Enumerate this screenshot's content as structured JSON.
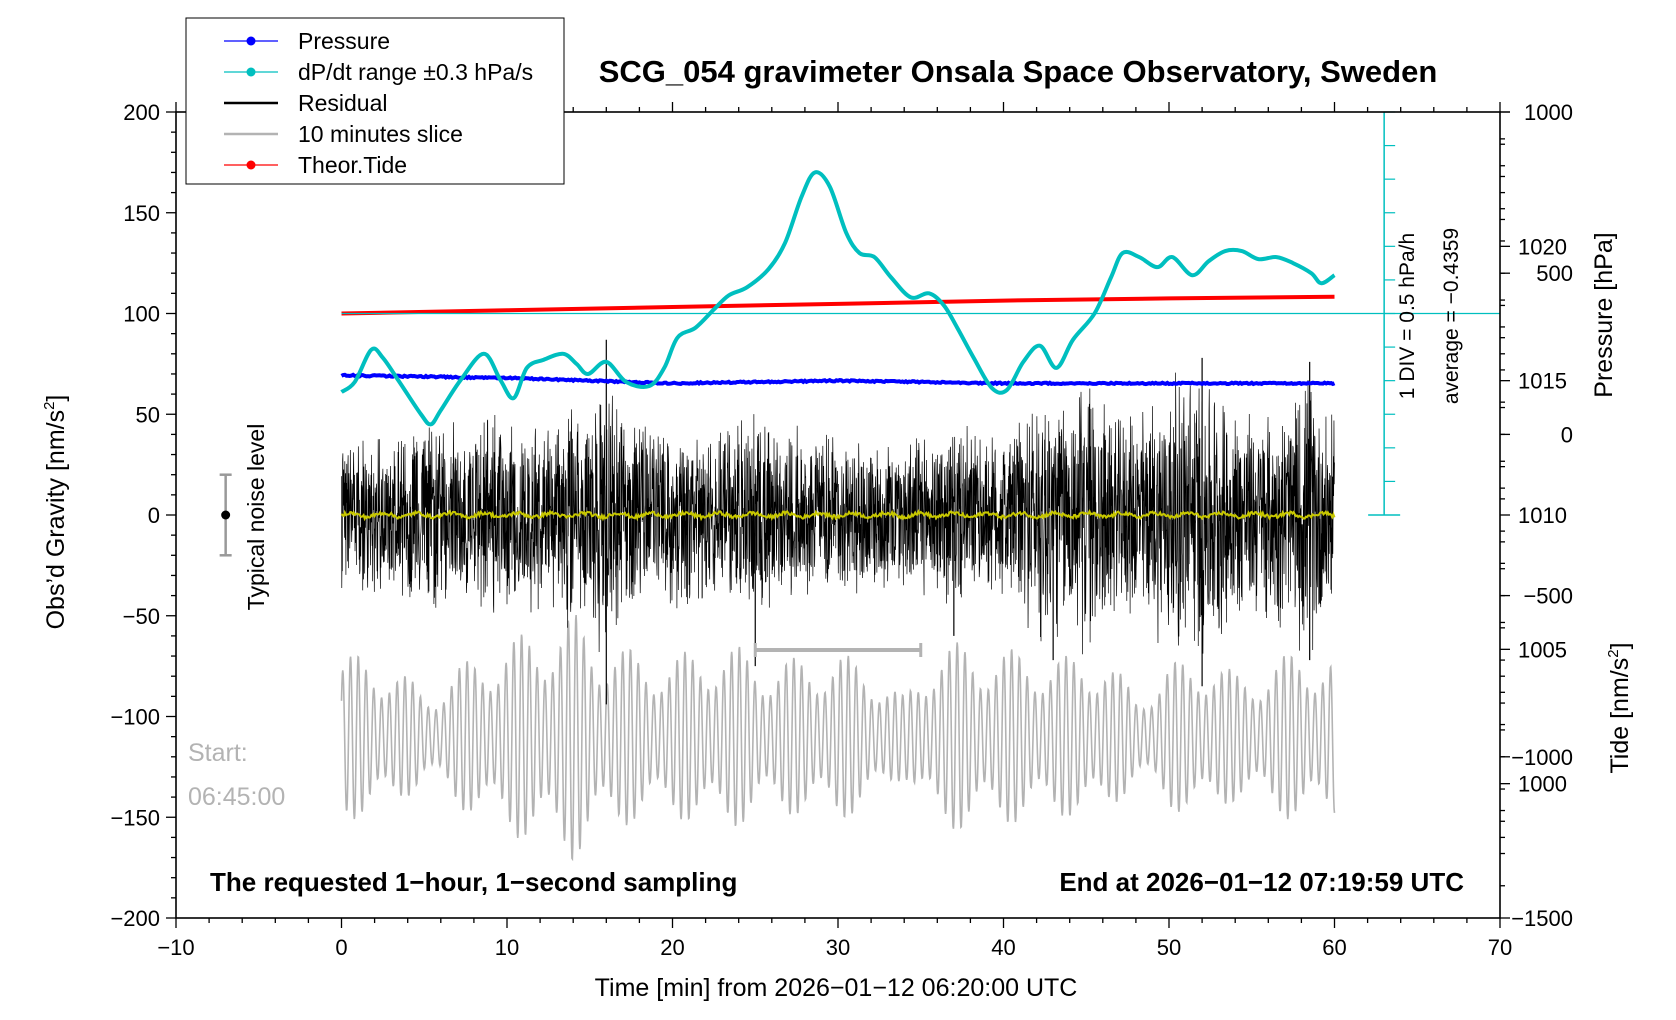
{
  "chart_data": {
    "type": "line",
    "title": "SCG_054 gravimeter Onsala Space Observatory, Sweden",
    "xlabel": "Time [min] from 2026−01−12 06:20:00 UTC",
    "ylabel_left": "Obs’d Gravity [nm/s",
    "ylabel_left_sup": "2",
    "ylabel_left_close": "]",
    "ylabel_right_pressure": "Pressure [hPa]",
    "ylabel_right_tide": "Tide [nm/s",
    "ylabel_right_tide_sup": "2",
    "ylabel_right_tide_close": "]",
    "xlim": [
      -10,
      70
    ],
    "ylim_left": [
      -200,
      200
    ],
    "pressure_ylim": [
      995,
      1025
    ],
    "tide_ylim": [
      -1500,
      1000
    ],
    "x_ticks": [
      "−10",
      "0",
      "10",
      "20",
      "30",
      "40",
      "50",
      "60",
      "70"
    ],
    "y_ticks_left": [
      "200",
      "150",
      "100",
      "50",
      "0",
      "−50",
      "−100",
      "−150",
      "−200"
    ],
    "pressure_ticks": [
      "1020",
      "1015",
      "1010",
      "1005",
      "1000"
    ],
    "tide_ticks": [
      "1000",
      "500",
      "0",
      "−500",
      "−1000",
      "−1500"
    ],
    "legend": [
      {
        "label": "Pressure",
        "color": "#0000ff",
        "marker": true
      },
      {
        "label": "dP/dt range ±0.3 hPa/s",
        "color": "#00bfbf",
        "marker": true
      },
      {
        "label": "Residual",
        "color": "#000000",
        "marker": false
      },
      {
        "label": "10 minutes slice",
        "color": "#b3b3b3",
        "marker": false
      },
      {
        "label": "Theor.Tide",
        "color": "#ff0000",
        "marker": true
      }
    ],
    "legend_placement": "top-left",
    "annotations": {
      "noise_label": "Typical noise level",
      "start_label": "Start:",
      "start_time": "06:45:00",
      "bottom_left": "The requested 1−hour, 1−second sampling",
      "bottom_right": "End at 2026−01−12 07:19:59 UTC",
      "div_label": "1 DIV = 0.5 hPa/h",
      "average_label": "average = −0.4359"
    },
    "noise_bar": {
      "x": -7,
      "center": 0,
      "half_range": 20
    },
    "slice_marker": {
      "x_start": 25,
      "x_end": 35,
      "y": -67
    },
    "dpdt_reference_y": 100,
    "series": [
      {
        "name": "Pressure",
        "color": "#0000ff",
        "axis": "pressure",
        "points": [
          [
            0,
            1015.2
          ],
          [
            10,
            1015.1
          ],
          [
            20,
            1014.9
          ],
          [
            30,
            1015.0
          ],
          [
            40,
            1014.9
          ],
          [
            50,
            1014.9
          ],
          [
            60,
            1014.9
          ]
        ]
      },
      {
        "name": "dP/dt range ±0.3 hPa/s",
        "color": "#00bfbf",
        "axis": "left",
        "points": [
          [
            0,
            61
          ],
          [
            0.8,
            66
          ],
          [
            1.8,
            82
          ],
          [
            2.5,
            78
          ],
          [
            3.5,
            66
          ],
          [
            4.8,
            50
          ],
          [
            5.4,
            45
          ],
          [
            6,
            52
          ],
          [
            7.2,
            67
          ],
          [
            8.6,
            80
          ],
          [
            9.6,
            67
          ],
          [
            10.4,
            58
          ],
          [
            11.2,
            73
          ],
          [
            12.2,
            77
          ],
          [
            13.4,
            80
          ],
          [
            14.2,
            75
          ],
          [
            14.9,
            70
          ],
          [
            16,
            76
          ],
          [
            17.2,
            66
          ],
          [
            18.6,
            64
          ],
          [
            19.5,
            73
          ],
          [
            20.3,
            88
          ],
          [
            21.4,
            93
          ],
          [
            22.5,
            102
          ],
          [
            23.4,
            109
          ],
          [
            24.5,
            113
          ],
          [
            25.8,
            122
          ],
          [
            26.8,
            135
          ],
          [
            27.8,
            158
          ],
          [
            28.6,
            170
          ],
          [
            29.5,
            163
          ],
          [
            30.5,
            140
          ],
          [
            31.3,
            130
          ],
          [
            32.2,
            128
          ],
          [
            33.2,
            118
          ],
          [
            34.4,
            108
          ],
          [
            35.5,
            110
          ],
          [
            36.4,
            104
          ],
          [
            37.2,
            93
          ],
          [
            38.2,
            78
          ],
          [
            39.3,
            63
          ],
          [
            40.2,
            62
          ],
          [
            41.2,
            76
          ],
          [
            42.2,
            84
          ],
          [
            43.2,
            73
          ],
          [
            44.2,
            87
          ],
          [
            45.5,
            100
          ],
          [
            46.5,
            118
          ],
          [
            47.2,
            130
          ],
          [
            48.2,
            128
          ],
          [
            49.3,
            123
          ],
          [
            50.2,
            128
          ],
          [
            51.4,
            119
          ],
          [
            52.4,
            126
          ],
          [
            53.4,
            131
          ],
          [
            54.4,
            131
          ],
          [
            55.4,
            127
          ],
          [
            56.5,
            128
          ],
          [
            57.5,
            125
          ],
          [
            58.6,
            120
          ],
          [
            59.2,
            115
          ],
          [
            60,
            119
          ]
        ]
      },
      {
        "name": "Residual",
        "color": "#000000",
        "axis": "left",
        "envelope": [
          [
            0,
            40
          ],
          [
            2,
            42
          ],
          [
            4,
            48
          ],
          [
            6,
            48
          ],
          [
            8,
            50
          ],
          [
            10,
            52
          ],
          [
            12,
            48
          ],
          [
            13.5,
            60
          ],
          [
            15,
            58
          ],
          [
            16,
            78
          ],
          [
            17,
            52
          ],
          [
            19,
            48
          ],
          [
            21,
            46
          ],
          [
            23,
            42
          ],
          [
            25,
            60
          ],
          [
            26,
            48
          ],
          [
            28,
            45
          ],
          [
            30,
            42
          ],
          [
            32,
            42
          ],
          [
            34,
            40
          ],
          [
            36,
            44
          ],
          [
            37.5,
            48
          ],
          [
            39,
            42
          ],
          [
            41,
            52
          ],
          [
            42.5,
            74
          ],
          [
            44,
            60
          ],
          [
            45,
            76
          ],
          [
            47,
            50
          ],
          [
            49,
            62
          ],
          [
            50.5,
            76
          ],
          [
            52,
            78
          ],
          [
            53.5,
            62
          ],
          [
            55,
            54
          ],
          [
            57,
            58
          ],
          [
            58.5,
            76
          ],
          [
            60,
            50
          ]
        ],
        "spikes": [
          [
            16,
            87
          ],
          [
            16,
            -94
          ],
          [
            25,
            -75
          ],
          [
            37,
            -60
          ],
          [
            43,
            -72
          ],
          [
            52,
            78
          ],
          [
            52,
            -85
          ],
          [
            58.5,
            76
          ],
          [
            58.5,
            -72
          ]
        ]
      },
      {
        "name": "10 minutes slice",
        "color": "#b3b3b3",
        "axis": "left",
        "x_range": [
          0,
          60
        ],
        "center": -110,
        "envelope": [
          [
            0,
            42
          ],
          [
            3,
            38
          ],
          [
            5,
            22
          ],
          [
            7,
            35
          ],
          [
            9,
            45
          ],
          [
            12,
            55
          ],
          [
            14,
            62
          ],
          [
            16,
            48
          ],
          [
            18,
            42
          ],
          [
            20,
            40
          ],
          [
            22,
            46
          ],
          [
            24,
            45
          ],
          [
            26,
            38
          ],
          [
            28,
            40
          ],
          [
            30,
            42
          ],
          [
            32,
            36
          ],
          [
            34,
            20
          ],
          [
            36,
            48
          ],
          [
            38,
            46
          ],
          [
            40,
            44
          ],
          [
            42,
            42
          ],
          [
            44,
            40
          ],
          [
            46,
            42
          ],
          [
            48,
            22
          ],
          [
            50,
            36
          ],
          [
            52,
            42
          ],
          [
            54,
            32
          ],
          [
            56,
            36
          ],
          [
            58,
            45
          ],
          [
            60,
            40
          ]
        ]
      },
      {
        "name": "Theor.Tide",
        "color": "#ff0000",
        "axis": "tide",
        "points": [
          [
            0,
            375
          ],
          [
            10,
            385
          ],
          [
            20,
            395
          ],
          [
            30,
            405
          ],
          [
            40,
            415
          ],
          [
            50,
            422
          ],
          [
            60,
            427
          ]
        ]
      },
      {
        "name": "",
        "color": "#c8c800",
        "axis": "left",
        "x_range": [
          0,
          60
        ],
        "center": 0,
        "amplitude": 2
      }
    ]
  }
}
